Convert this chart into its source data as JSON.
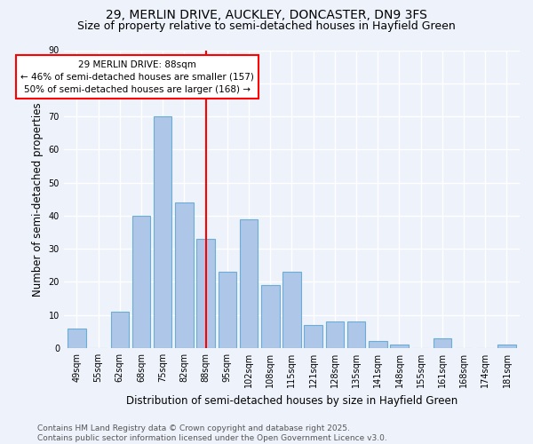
{
  "title1": "29, MERLIN DRIVE, AUCKLEY, DONCASTER, DN9 3FS",
  "title2": "Size of property relative to semi-detached houses in Hayfield Green",
  "xlabel": "Distribution of semi-detached houses by size in Hayfield Green",
  "ylabel": "Number of semi-detached properties",
  "categories": [
    "49sqm",
    "55sqm",
    "62sqm",
    "68sqm",
    "75sqm",
    "82sqm",
    "88sqm",
    "95sqm",
    "102sqm",
    "108sqm",
    "115sqm",
    "121sqm",
    "128sqm",
    "135sqm",
    "141sqm",
    "148sqm",
    "155sqm",
    "161sqm",
    "168sqm",
    "174sqm",
    "181sqm"
  ],
  "values": [
    6,
    0,
    11,
    40,
    70,
    44,
    33,
    23,
    39,
    19,
    23,
    7,
    8,
    8,
    2,
    1,
    0,
    3,
    0,
    0,
    1
  ],
  "bar_color": "#aec6e8",
  "bar_edge_color": "#6aaed6",
  "annotation_line_x": "88sqm",
  "annotation_line_color": "red",
  "annotation_text": "29 MERLIN DRIVE: 88sqm\n← 46% of semi-detached houses are smaller (157)\n50% of semi-detached houses are larger (168) →",
  "annotation_box_color": "white",
  "annotation_box_edge_color": "red",
  "footer": "Contains HM Land Registry data © Crown copyright and database right 2025.\nContains public sector information licensed under the Open Government Licence v3.0.",
  "ylim": [
    0,
    90
  ],
  "background_color": "#eef2fb",
  "grid_color": "#ffffff",
  "title1_fontsize": 10,
  "title2_fontsize": 9,
  "xlabel_fontsize": 8.5,
  "ylabel_fontsize": 8.5,
  "tick_fontsize": 7,
  "footer_fontsize": 6.5,
  "annotation_fontsize": 7.5
}
